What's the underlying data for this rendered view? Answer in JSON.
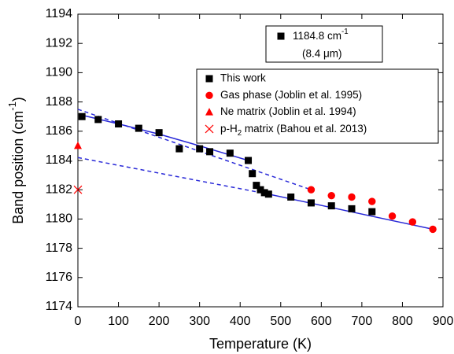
{
  "chart_data": {
    "type": "scatter",
    "x_label": "Temperature (K)",
    "y_label": {
      "parts": [
        "Band position (cm",
        "-1",
        ")"
      ],
      "script": "super"
    },
    "annotation": {
      "line1": {
        "parts": [
          "1184.8 cm",
          "-1"
        ],
        "script": "super"
      },
      "line2": "(8.4 μm)"
    },
    "xlim": [
      0,
      900
    ],
    "xticks": [
      0,
      100,
      200,
      300,
      400,
      500,
      600,
      700,
      800,
      900
    ],
    "ylim": [
      1174,
      1194
    ],
    "yticks": [
      1174,
      1176,
      1178,
      1180,
      1182,
      1184,
      1186,
      1188,
      1190,
      1192,
      1194
    ],
    "series": [
      {
        "name": "This work",
        "color": "#000000",
        "marker": "square",
        "x": [
          10,
          50,
          100,
          150,
          200,
          250,
          300,
          325,
          375,
          420,
          430,
          440,
          450,
          460,
          470,
          525,
          575,
          625,
          675,
          725
        ],
        "values": [
          1187.0,
          1186.8,
          1186.5,
          1186.2,
          1185.9,
          1184.8,
          1184.8,
          1184.6,
          1184.5,
          1184.0,
          1183.1,
          1182.3,
          1182.0,
          1181.8,
          1181.7,
          1181.5,
          1181.1,
          1180.9,
          1180.7,
          1180.5
        ]
      },
      {
        "name": "Gas phase (Joblin et al. 1995)",
        "color": "#ff0000",
        "marker": "circle",
        "x": [
          575,
          625,
          675,
          725,
          775,
          825,
          875
        ],
        "values": [
          1182.0,
          1181.6,
          1181.5,
          1181.2,
          1180.2,
          1179.8,
          1179.3
        ]
      },
      {
        "name": "Ne matrix (Joblin et al. 1994)",
        "color": "#ff0000",
        "marker": "triangle",
        "x": [
          0
        ],
        "values": [
          1185.0
        ]
      },
      {
        "name": {
          "parts": [
            "p-H",
            "2",
            " matrix (Bahou et al. 2013)"
          ],
          "script": "sub"
        },
        "color": "#ff0000",
        "marker": "cross",
        "x": [
          0
        ],
        "values": [
          1182.0
        ]
      }
    ],
    "fits": [
      {
        "x": [
          0,
          575
        ],
        "values": [
          1187.5,
          1182.0
        ],
        "dashed": true,
        "color": "#2a2ad8"
      },
      {
        "x": [
          0,
          470
        ],
        "values": [
          1184.2,
          1181.7
        ],
        "dashed": true,
        "color": "#2a2ad8"
      },
      {
        "x": [
          10,
          100,
          200,
          300,
          420
        ],
        "values": [
          1187.1,
          1186.5,
          1185.8,
          1185.0,
          1184.0
        ],
        "dashed": false,
        "color": "#2a2ad8"
      },
      {
        "x": [
          470,
          875
        ],
        "values": [
          1181.7,
          1179.3
        ],
        "dashed": false,
        "color": "#2a2ad8"
      }
    ]
  }
}
